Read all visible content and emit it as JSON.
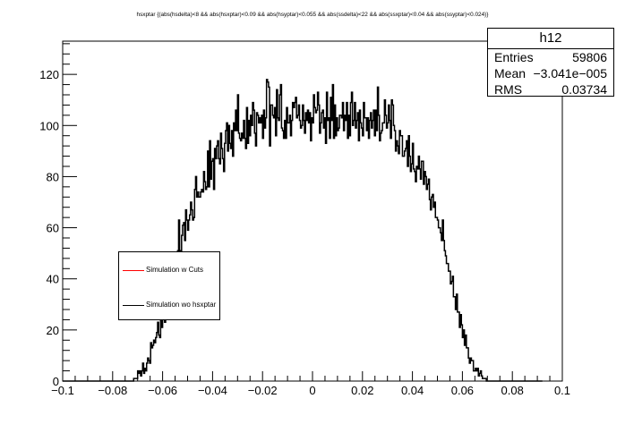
{
  "chart_data": {
    "type": "histogram",
    "title": "hsxptar {(abs(hsdelta)<8 && abs(hsxptar)<0.09 && abs(hsyptar)<0.055 && abs(ssdelta)<22 && abs(ssxptar)<0.04 && abs(ssyptar)<0.024)}",
    "xlabel": "",
    "ylabel": "",
    "xlim": [
      -0.1,
      0.1
    ],
    "ylim": [
      0,
      133
    ],
    "x_ticks": [
      -0.1,
      -0.08,
      -0.06,
      -0.04,
      -0.02,
      0,
      0.02,
      0.04,
      0.06,
      0.08,
      0.1
    ],
    "x_tick_labels": [
      "−0.1",
      "−0.08",
      "−0.06",
      "−0.04",
      "−0.02",
      "0",
      "0.02",
      "0.04",
      "0.06",
      "0.08",
      "0.1"
    ],
    "y_ticks": [
      0,
      20,
      40,
      60,
      80,
      100,
      120
    ],
    "y_tick_labels": [
      "0",
      "20",
      "40",
      "60",
      "80",
      "100",
      "120"
    ],
    "grid": false,
    "legend_position": "left-middle",
    "series": [
      {
        "name": "Simulation w Cuts",
        "color": "#ff0000",
        "values": []
      },
      {
        "name": "Simulation wo hsxptar",
        "color": "#000000",
        "bin_width": 0.0004,
        "x_start": -0.1,
        "values": [
          0,
          0,
          0,
          0,
          0,
          0,
          0,
          0,
          0,
          0,
          0,
          0,
          0,
          0,
          0,
          0,
          0,
          0,
          0,
          0,
          0,
          0,
          0,
          0,
          0,
          0,
          0,
          0,
          0,
          0,
          0,
          0,
          0,
          0,
          0,
          0,
          0,
          0,
          0,
          0,
          0,
          0,
          0,
          0,
          0,
          0,
          0,
          0,
          0,
          0,
          0,
          0,
          0,
          0,
          0,
          0,
          0,
          0,
          0,
          0,
          0,
          0,
          0,
          0,
          0,
          0,
          0,
          0,
          0,
          0,
          0,
          1,
          1,
          1,
          1,
          4,
          3,
          4,
          2,
          4,
          7,
          3,
          5,
          4,
          7,
          9,
          8,
          7,
          15,
          13,
          14,
          16,
          15,
          17,
          19,
          23,
          18,
          17,
          29,
          21,
          27,
          29,
          23,
          29,
          34,
          32,
          40,
          30,
          42,
          40,
          48,
          39,
          35,
          49,
          47,
          51,
          63,
          48,
          51,
          57,
          61,
          62,
          55,
          67,
          63,
          59,
          63,
          65,
          70,
          67,
          63,
          64,
          75,
          80,
          72,
          74,
          72,
          72,
          74,
          75,
          74,
          82,
          78,
          75,
          76,
          90,
          76,
          94,
          79,
          86,
          87,
          75,
          91,
          87,
          92,
          94,
          87,
          85,
          97,
          91,
          87,
          82,
          93,
          98,
          101,
          90,
          100,
          93,
          91,
          98,
          88,
          101,
          98,
          106,
          98,
          112,
          97,
          95,
          94,
          97,
          95,
          102,
          95,
          91,
          107,
          93,
          102,
          96,
          104,
          100,
          109,
          106,
          97,
          92,
          105,
          104,
          101,
          103,
          101,
          104,
          95,
          106,
          99,
          103,
          118,
          117,
          115,
          92,
          108,
          108,
          104,
          103,
          107,
          96,
          114,
          103,
          102,
          112,
          116,
          99,
          98,
          95,
          102,
          95,
          107,
          101,
          101,
          104,
          96,
          102,
          109,
          107,
          109,
          111,
          103,
          104,
          108,
          102,
          99,
          100,
          108,
          102,
          97,
          105,
          102,
          106,
          101,
          105,
          94,
          103,
          101,
          112,
          107,
          105,
          106,
          113,
          108,
          97,
          101,
          105,
          106,
          99,
          103,
          93,
          113,
          102,
          103,
          95,
          111,
          102,
          116,
          95,
          108,
          96,
          103,
          98,
          99,
          104,
          104,
          103,
          109,
          98,
          104,
          102,
          109,
          95,
          104,
          96,
          109,
          113,
          100,
          102,
          109,
          99,
          102,
          105,
          94,
          106,
          101,
          99,
          96,
          109,
          103,
          103,
          98,
          103,
          95,
          102,
          105,
          99,
          102,
          106,
          96,
          106,
          98,
          115,
          104,
          94,
          97,
          98,
          101,
          101,
          110,
          104,
          99,
          101,
          108,
          102,
          95,
          110,
          108,
          100,
          98,
          90,
          94,
          92,
          89,
          98,
          96,
          96,
          88,
          88,
          90,
          91,
          94,
          84,
          96,
          88,
          82,
          85,
          93,
          83,
          82,
          78,
          84,
          83,
          88,
          83,
          79,
          86,
          86,
          77,
          82,
          80,
          75,
          77,
          79,
          71,
          67,
          72,
          73,
          68,
          70,
          64,
          64,
          63,
          60,
          60,
          58,
          55,
          63,
          55,
          51,
          49,
          46,
          46,
          43,
          43,
          38,
          39,
          41,
          33,
          33,
          28,
          34,
          27,
          27,
          21,
          26,
          22,
          17,
          20,
          14,
          18,
          13,
          13,
          9,
          7,
          9,
          8,
          8,
          4,
          4,
          5,
          4,
          5,
          2,
          3,
          4,
          2,
          1,
          1,
          1,
          1,
          0,
          0,
          0,
          0,
          0,
          0,
          0,
          0,
          0,
          0,
          0,
          0,
          0,
          0,
          0,
          0,
          0,
          0,
          0,
          0,
          0,
          0,
          0,
          0,
          0,
          0,
          0,
          0,
          0,
          0,
          0,
          0,
          0,
          0,
          0,
          0,
          0,
          0,
          0,
          0,
          0,
          0,
          0,
          0,
          0,
          0,
          0,
          0,
          0,
          0,
          0,
          0,
          0,
          0,
          0,
          0
        ]
      }
    ]
  },
  "stats": {
    "title": "h12",
    "rows": [
      {
        "label": "Entries",
        "value": "59806"
      },
      {
        "label": "Mean",
        "value": "−3.041e−005"
      },
      {
        "label": "RMS",
        "value": "0.03734"
      }
    ]
  }
}
